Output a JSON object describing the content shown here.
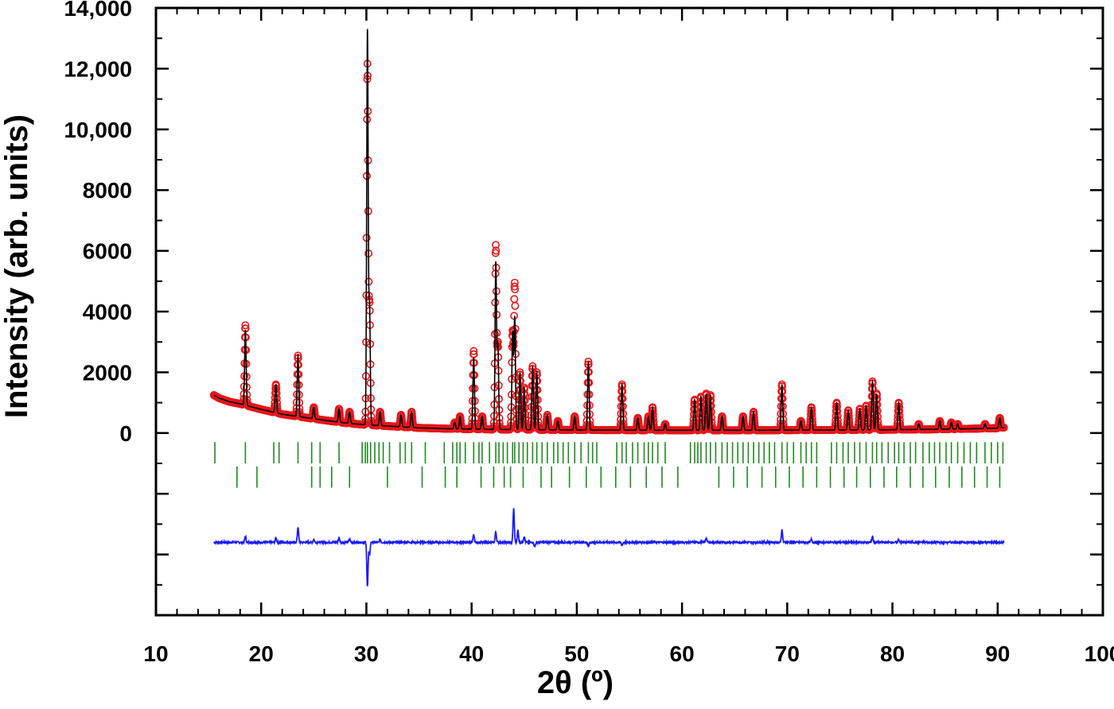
{
  "chart_data": {
    "type": "line",
    "title": "",
    "xlabel": "2θ (º)",
    "ylabel": "Intensity (arb. units)",
    "xlim": [
      10,
      100
    ],
    "ylim": [
      -6000,
      14000
    ],
    "x_ticks": [
      10,
      20,
      30,
      40,
      50,
      60,
      70,
      80,
      90,
      100
    ],
    "x_tick_labels": [
      "10",
      "20",
      "30",
      "40",
      "50",
      "60",
      "70",
      "80",
      "90",
      "100"
    ],
    "y_ticks": [
      0,
      2000,
      4000,
      6000,
      8000,
      10000,
      12000,
      14000
    ],
    "y_tick_labels": [
      "0",
      "2000",
      "4000",
      "6000",
      "8000",
      "10,000",
      "12,000",
      "14,000"
    ],
    "y_unlabeled_ticks": [
      -2000,
      -4000
    ],
    "grid": false,
    "legend": "none",
    "colors": {
      "observed": "#e8161b",
      "calculated": "#000000",
      "bragg": "#1f8a1f",
      "difference": "#1a1aff"
    },
    "background": {
      "x": [
        15.5,
        16,
        17,
        18,
        20,
        22,
        25,
        28,
        30,
        32,
        35,
        38,
        40,
        42,
        45,
        48,
        50,
        55,
        60,
        65,
        70,
        75,
        80,
        85,
        90,
        90.5
      ],
      "y": [
        1250,
        1150,
        1030,
        960,
        780,
        620,
        470,
        330,
        270,
        230,
        170,
        140,
        130,
        120,
        110,
        105,
        100,
        95,
        90,
        90,
        95,
        100,
        110,
        125,
        160,
        180
      ]
    },
    "series": [
      {
        "role": "observed",
        "marker": "open-circle",
        "peaks": [
          {
            "x": 18.5,
            "y": 3550
          },
          {
            "x": 21.4,
            "y": 1600
          },
          {
            "x": 23.5,
            "y": 2550
          },
          {
            "x": 25.0,
            "y": 850
          },
          {
            "x": 27.4,
            "y": 800
          },
          {
            "x": 28.4,
            "y": 700
          },
          {
            "x": 30.1,
            "y": 12100
          },
          {
            "x": 30.3,
            "y": 4100
          },
          {
            "x": 31.3,
            "y": 700
          },
          {
            "x": 33.3,
            "y": 600
          },
          {
            "x": 34.3,
            "y": 700
          },
          {
            "x": 38.4,
            "y": 350
          },
          {
            "x": 38.9,
            "y": 550
          },
          {
            "x": 40.2,
            "y": 2700
          },
          {
            "x": 41.0,
            "y": 550
          },
          {
            "x": 42.3,
            "y": 6150
          },
          {
            "x": 42.5,
            "y": 2900
          },
          {
            "x": 43.9,
            "y": 3300
          },
          {
            "x": 44.1,
            "y": 4900
          },
          {
            "x": 44.6,
            "y": 2000
          },
          {
            "x": 45.0,
            "y": 1500
          },
          {
            "x": 45.8,
            "y": 2200
          },
          {
            "x": 46.2,
            "y": 2000
          },
          {
            "x": 47.2,
            "y": 600
          },
          {
            "x": 48.2,
            "y": 400
          },
          {
            "x": 49.8,
            "y": 550
          },
          {
            "x": 51.1,
            "y": 2350
          },
          {
            "x": 54.3,
            "y": 1600
          },
          {
            "x": 55.8,
            "y": 500
          },
          {
            "x": 56.8,
            "y": 550
          },
          {
            "x": 57.2,
            "y": 850
          },
          {
            "x": 58.4,
            "y": 300
          },
          {
            "x": 61.2,
            "y": 1100
          },
          {
            "x": 61.8,
            "y": 1200
          },
          {
            "x": 62.3,
            "y": 1300
          },
          {
            "x": 62.7,
            "y": 1250
          },
          {
            "x": 63.8,
            "y": 550
          },
          {
            "x": 65.8,
            "y": 550
          },
          {
            "x": 66.8,
            "y": 700
          },
          {
            "x": 69.5,
            "y": 1600
          },
          {
            "x": 71.3,
            "y": 400
          },
          {
            "x": 72.3,
            "y": 850
          },
          {
            "x": 74.7,
            "y": 1000
          },
          {
            "x": 75.8,
            "y": 750
          },
          {
            "x": 76.9,
            "y": 800
          },
          {
            "x": 77.5,
            "y": 900
          },
          {
            "x": 78.1,
            "y": 1700
          },
          {
            "x": 78.5,
            "y": 1300
          },
          {
            "x": 80.6,
            "y": 1000
          },
          {
            "x": 82.5,
            "y": 300
          },
          {
            "x": 84.5,
            "y": 400
          },
          {
            "x": 85.6,
            "y": 350
          },
          {
            "x": 86.2,
            "y": 300
          },
          {
            "x": 88.8,
            "y": 300
          },
          {
            "x": 90.2,
            "y": 500
          }
        ]
      },
      {
        "role": "calculated",
        "peaks": [
          {
            "x": 30.1,
            "y": 13250
          },
          {
            "x": 42.3,
            "y": 5600
          },
          {
            "x": 44.1,
            "y": 3800
          },
          {
            "x": 18.5,
            "y": 3400
          },
          {
            "x": 51.1,
            "y": 2350
          },
          {
            "x": 40.2,
            "y": 2500
          }
        ]
      },
      {
        "role": "bragg-phase-1",
        "y_offset": -300,
        "tick_height": 700,
        "positions": [
          15.6,
          18.5,
          21.2,
          21.7,
          23.5,
          24.8,
          25.6,
          27.4,
          29.6,
          29.9,
          30.1,
          30.4,
          30.8,
          31.2,
          31.6,
          32.2,
          33.2,
          33.7,
          34.3,
          35.6,
          37.4,
          38.2,
          38.6,
          38.9,
          39.4,
          40.2,
          40.7,
          41.0,
          41.7,
          42.3,
          42.6,
          43.0,
          43.4,
          43.9,
          44.1,
          44.5,
          44.9,
          45.3,
          45.8,
          46.2,
          46.7,
          47.2,
          47.8,
          48.2,
          48.7,
          49.2,
          49.8,
          50.4,
          51.1,
          51.5,
          51.9,
          53.8,
          54.3,
          54.7,
          55.3,
          55.8,
          56.4,
          56.8,
          57.2,
          57.7,
          58.4,
          60.8,
          61.2,
          61.5,
          61.8,
          62.3,
          62.7,
          63.2,
          63.8,
          64.3,
          64.8,
          65.3,
          65.8,
          66.3,
          66.8,
          67.3,
          67.8,
          68.3,
          68.8,
          69.5,
          70.0,
          70.6,
          71.3,
          71.8,
          72.3,
          72.8,
          74.2,
          74.7,
          75.3,
          75.8,
          76.4,
          76.9,
          77.5,
          78.1,
          78.5,
          79.0,
          79.6,
          80.2,
          80.6,
          81.1,
          81.7,
          82.2,
          82.9,
          83.5,
          84.0,
          84.5,
          85.1,
          85.6,
          86.2,
          86.8,
          87.4,
          88.0,
          88.8,
          89.4,
          90.0,
          90.5
        ]
      },
      {
        "role": "bragg-phase-2",
        "y_offset": -1100,
        "tick_height": 700,
        "positions": [
          17.7,
          19.6,
          24.8,
          25.6,
          26.7,
          28.4,
          32.0,
          35.3,
          37.5,
          38.6,
          40.9,
          42.1,
          43.1,
          43.7,
          44.9,
          46.6,
          47.6,
          49.3,
          50.9,
          52.3,
          53.7,
          55.1,
          56.6,
          58.1,
          59.6,
          63.5,
          64.9,
          66.2,
          67.6,
          68.9,
          70.2,
          71.5,
          72.8,
          74.1,
          75.4,
          76.6,
          77.9,
          79.2,
          80.4,
          81.7,
          82.9,
          84.1,
          85.4,
          86.6,
          87.8,
          89.0,
          90.2
        ]
      },
      {
        "role": "difference",
        "y_offset": -3600,
        "spikes": [
          {
            "x": 18.5,
            "y": 200
          },
          {
            "x": 21.4,
            "y": 150
          },
          {
            "x": 23.5,
            "y": 500
          },
          {
            "x": 25.0,
            "y": 100
          },
          {
            "x": 27.4,
            "y": 150
          },
          {
            "x": 28.4,
            "y": 120
          },
          {
            "x": 30.1,
            "y": -1450
          },
          {
            "x": 30.3,
            "y": -400
          },
          {
            "x": 31.3,
            "y": 100
          },
          {
            "x": 40.2,
            "y": 250
          },
          {
            "x": 42.3,
            "y": 350
          },
          {
            "x": 44.0,
            "y": 1100
          },
          {
            "x": 44.4,
            "y": 400
          },
          {
            "x": 45.0,
            "y": 200
          },
          {
            "x": 46.0,
            "y": -150
          },
          {
            "x": 51.1,
            "y": -150
          },
          {
            "x": 54.3,
            "y": -100
          },
          {
            "x": 62.3,
            "y": 150
          },
          {
            "x": 69.5,
            "y": 400
          },
          {
            "x": 72.3,
            "y": 100
          },
          {
            "x": 78.1,
            "y": 200
          },
          {
            "x": 80.6,
            "y": 100
          }
        ]
      }
    ]
  }
}
